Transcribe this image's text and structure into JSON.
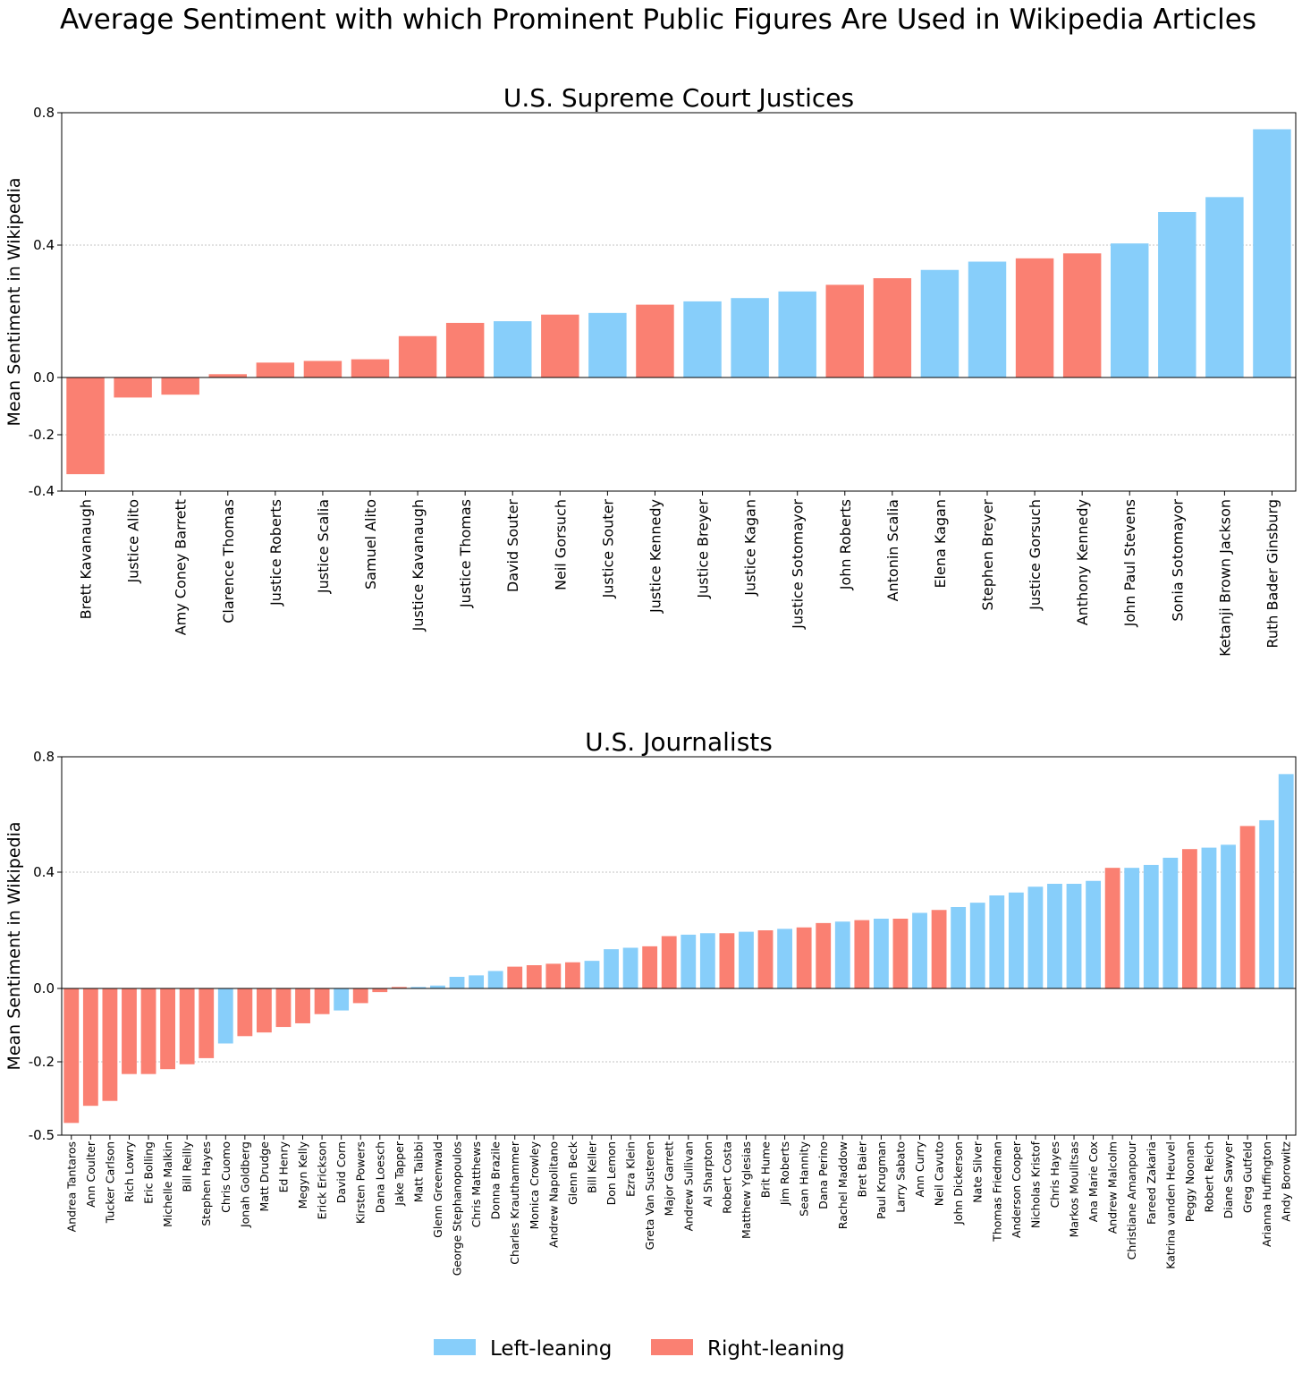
{
  "figure": {
    "title": "Average Sentiment with which Prominent Public Figures Are Used in Wikipedia Articles",
    "legend": [
      {
        "label": "Left-leaning",
        "color": "#87CEFA"
      },
      {
        "label": "Right-leaning",
        "color": "#FA8072"
      }
    ]
  },
  "chart_data": [
    {
      "type": "bar",
      "title": "U.S. Supreme Court Justices",
      "xlabel": "",
      "ylabel": "Mean Sentiment in Wikipedia",
      "ylim": [
        -0.4,
        0.8
      ],
      "yticks": [
        0.8,
        0.4,
        0.0,
        -0.2,
        -0.4
      ],
      "yticklabels": [
        "0.8",
        "0.4",
        "0.0",
        "-0.2",
        "-0.4"
      ],
      "grid": "horizontal dotted",
      "legend_position": "bottom-center (shared)",
      "categories": [
        "Brett Kavanaugh",
        "Justice Alito",
        "Amy Coney Barrett",
        "Clarence Thomas",
        "Justice Roberts",
        "Justice Scalia",
        "Samuel Alito",
        "Justice Kavanaugh",
        "Justice Thomas",
        "David Souter",
        "Neil Gorsuch",
        "Justice Souter",
        "Justice Kennedy",
        "Justice Breyer",
        "Justice Kagan",
        "Justice Sotomayor",
        "John Roberts",
        "Antonin Scalia",
        "Elena Kagan",
        "Stephen Breyer",
        "Justice Gorsuch",
        "Anthony Kennedy",
        "John Paul Stevens",
        "Sonia Sotomayor",
        "Ketanji Brown Jackson",
        "Ruth Bader Ginsburg"
      ],
      "values": [
        -0.34,
        -0.07,
        -0.06,
        0.01,
        0.045,
        0.05,
        0.055,
        0.125,
        0.165,
        0.17,
        0.19,
        0.195,
        0.22,
        0.23,
        0.24,
        0.26,
        0.28,
        0.3,
        0.325,
        0.35,
        0.36,
        0.375,
        0.405,
        0.5,
        0.545,
        0.75
      ],
      "leaning": [
        "right",
        "right",
        "right",
        "right",
        "right",
        "right",
        "right",
        "right",
        "right",
        "left",
        "right",
        "left",
        "right",
        "left",
        "left",
        "left",
        "right",
        "right",
        "left",
        "left",
        "right",
        "right",
        "left",
        "left",
        "left",
        "left"
      ]
    },
    {
      "type": "bar",
      "title": "U.S. Journalists",
      "xlabel": "",
      "ylabel": "Mean Sentiment in Wikipedia",
      "ylim": [
        -0.5,
        0.8
      ],
      "yticks": [
        0.8,
        0.4,
        0.0,
        -0.2,
        -0.5
      ],
      "yticklabels": [
        "0.8",
        "0.4",
        "0.0",
        "-0.2",
        "-0.5"
      ],
      "grid": "horizontal dotted",
      "legend_position": "bottom-center (shared)",
      "categories": [
        "Andrea Tantaros",
        "Ann Coulter",
        "Tucker Carlson",
        "Rich Lowry",
        "Eric Bolling",
        "Michelle Malkin",
        "Bill Reilly",
        "Stephen Hayes",
        "Chris Cuomo",
        "Jonah Goldberg",
        "Matt Drudge",
        "Ed Henry",
        "Megyn Kelly",
        "Erick Erickson",
        "David Corn",
        "Kirsten Powers",
        "Dana Loesch",
        "Jake Tapper",
        "Matt Taibbi",
        "Glenn Greenwald",
        "George Stephanopoulos",
        "Chris Matthews",
        "Donna Brazile",
        "Charles Krauthammer",
        "Monica Crowley",
        "Andrew Napolitano",
        "Glenn Beck",
        "Bill Keller",
        "Don Lemon",
        "Ezra Klein",
        "Greta Van Susteren",
        "Major Garrett",
        "Andrew Sullivan",
        "Al Sharpton",
        "Robert Costa",
        "Matthew Yglesias",
        "Brit Hume",
        "Jim Roberts",
        "Sean Hannity",
        "Dana Perino",
        "Rachel Maddow",
        "Bret Baier",
        "Paul Krugman",
        "Larry Sabato",
        "Ann Curry",
        "Neil Cavuto",
        "John Dickerson",
        "Nate Silver",
        "Thomas Friedman",
        "Anderson Cooper",
        "Nicholas Kristof",
        "Chris Hayes",
        "Markos Moulitsas",
        "Ana Marie Cox",
        "Andrew Malcolm",
        "Christiane Amanpour",
        "Fareed Zakaria",
        "Katrina vanden Heuvel",
        "Peggy Noonan",
        "Robert Reich",
        "Diane Sawyer",
        "Greg Gutfeld",
        "Arianna Huffington",
        "Andy Borowitz"
      ],
      "values": [
        -0.45,
        -0.38,
        -0.36,
        -0.25,
        -0.25,
        -0.23,
        -0.21,
        -0.19,
        -0.15,
        -0.13,
        -0.12,
        -0.105,
        -0.095,
        -0.07,
        -0.06,
        -0.04,
        -0.01,
        0.005,
        0.005,
        0.01,
        0.04,
        0.045,
        0.06,
        0.075,
        0.08,
        0.085,
        0.09,
        0.095,
        0.135,
        0.14,
        0.145,
        0.18,
        0.185,
        0.19,
        0.19,
        0.195,
        0.2,
        0.205,
        0.21,
        0.225,
        0.23,
        0.235,
        0.24,
        0.24,
        0.26,
        0.27,
        0.28,
        0.295,
        0.32,
        0.33,
        0.35,
        0.36,
        0.36,
        0.37,
        0.415,
        0.415,
        0.425,
        0.45,
        0.48,
        0.485,
        0.495,
        0.56,
        0.58,
        0.74
      ],
      "leaning": [
        "right",
        "right",
        "right",
        "right",
        "right",
        "right",
        "right",
        "right",
        "left",
        "right",
        "right",
        "right",
        "right",
        "right",
        "left",
        "right",
        "right",
        "right",
        "left",
        "left",
        "left",
        "left",
        "left",
        "right",
        "right",
        "right",
        "right",
        "left",
        "left",
        "left",
        "right",
        "right",
        "left",
        "left",
        "right",
        "left",
        "right",
        "left",
        "right",
        "right",
        "left",
        "right",
        "left",
        "right",
        "left",
        "right",
        "left",
        "left",
        "left",
        "left",
        "left",
        "left",
        "left",
        "left",
        "right",
        "left",
        "left",
        "left",
        "right",
        "left",
        "left",
        "right",
        "left",
        "left"
      ]
    }
  ]
}
